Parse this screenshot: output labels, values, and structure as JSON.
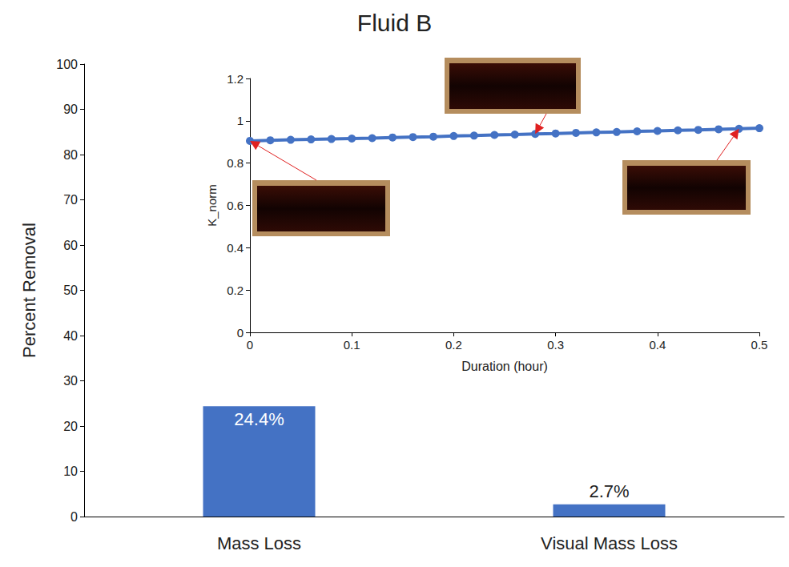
{
  "chart_data": [
    {
      "type": "bar",
      "title": "Fluid B",
      "categories": [
        "Mass Loss",
        "Visual Mass Loss"
      ],
      "values": [
        24.4,
        2.7
      ],
      "value_labels": [
        "24.4%",
        "2.7%"
      ],
      "color": "#4472c4",
      "ylabel": "Percent Removal",
      "ylim": [
        0,
        100
      ],
      "yticks": [
        0,
        10,
        20,
        30,
        40,
        50,
        60,
        70,
        80,
        90,
        100
      ],
      "grid": false,
      "data_labels": true
    },
    {
      "type": "line",
      "x": [
        0,
        0.02,
        0.04,
        0.06,
        0.08,
        0.1,
        0.12,
        0.14,
        0.16,
        0.18,
        0.2,
        0.22,
        0.24,
        0.26,
        0.28,
        0.3,
        0.32,
        0.34,
        0.36,
        0.38,
        0.4,
        0.42,
        0.44,
        0.46,
        0.48,
        0.5
      ],
      "values": [
        0.905,
        0.908,
        0.91,
        0.912,
        0.914,
        0.916,
        0.918,
        0.921,
        0.923,
        0.925,
        0.928,
        0.93,
        0.933,
        0.935,
        0.938,
        0.94,
        0.943,
        0.945,
        0.947,
        0.95,
        0.952,
        0.955,
        0.957,
        0.96,
        0.962,
        0.965
      ],
      "color": "#4472c4",
      "marker": "circle",
      "xlabel": "Duration (hour)",
      "ylabel": "K_norm",
      "xlim": [
        0,
        0.5
      ],
      "xticks": [
        0,
        0.1,
        0.2,
        0.3,
        0.4,
        0.5
      ],
      "ylim": [
        0,
        1.2
      ],
      "yticks": [
        0,
        0.2,
        0.4,
        0.6,
        0.8,
        1,
        1.2
      ],
      "grid": false
    }
  ]
}
